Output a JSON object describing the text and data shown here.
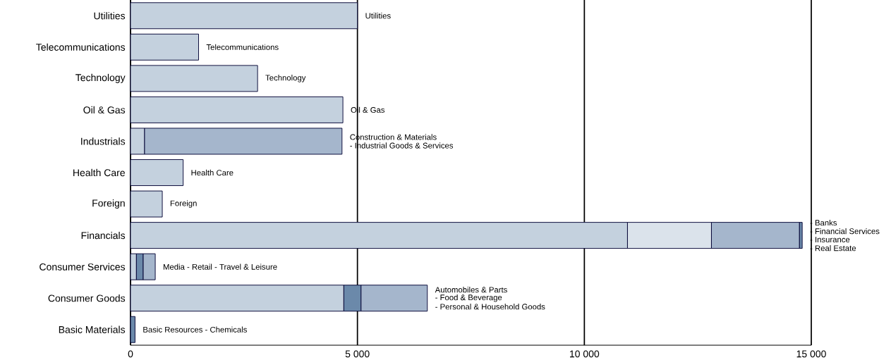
{
  "chart_data": {
    "type": "bar",
    "orientation": "horizontal",
    "stacked": true,
    "categories": [
      "Utilities",
      "Telecommunications",
      "Technology",
      "Oil & Gas",
      "Industrials",
      "Health Care",
      "Foreign",
      "Financials",
      "Consumer Services",
      "Consumer Goods",
      "Basic Materials"
    ],
    "series": [
      {
        "values": [
          5000,
          1500,
          2800,
          4680,
          310,
          1160,
          700,
          10950,
          130,
          4700,
          100
        ],
        "colors": [
          "#c4d1de",
          "#c4d1de",
          "#c4d1de",
          "#c4d1de",
          "#c4d1de",
          "#c4d1de",
          "#c4d1de",
          "#c4d1de",
          "#c4d1de",
          "#c4d1de",
          "#6b89aa"
        ]
      },
      {
        "values": [
          null,
          null,
          null,
          null,
          4350,
          null,
          null,
          1850,
          150,
          380,
          null
        ],
        "colors": [
          null,
          null,
          null,
          null,
          "#a5b6cc",
          null,
          null,
          "#dbe3eb",
          "#6b89aa",
          "#6b89aa",
          null
        ]
      },
      {
        "values": [
          null,
          null,
          null,
          null,
          null,
          null,
          null,
          1940,
          265,
          1460,
          null
        ],
        "colors": [
          null,
          null,
          null,
          null,
          null,
          null,
          null,
          "#a5b6cc",
          "#a5b6cc",
          "#a5b6cc",
          null
        ]
      },
      {
        "values": [
          null,
          null,
          null,
          null,
          null,
          null,
          null,
          60,
          null,
          null,
          null
        ],
        "colors": [
          null,
          null,
          null,
          null,
          null,
          null,
          null,
          "#6b89aa",
          null,
          null,
          null
        ]
      }
    ],
    "xlim": [
      0,
      15000
    ],
    "xticks": [
      0,
      {
        "value": 5000,
        "label": "5 000"
      },
      {
        "value": 10000,
        "label": "10 000"
      },
      {
        "value": 15000,
        "label": "15 000"
      }
    ],
    "grid": "x",
    "annotations": [
      {
        "text": "Utilities",
        "x": 5000,
        "y": "Utilities"
      },
      {
        "text": "Telecommunications",
        "x": 1500,
        "y": "Telecommunications"
      },
      {
        "text": "Technology",
        "x": 2800,
        "y": "Technology"
      },
      {
        "text": "Oil & Gas",
        "x": 4680,
        "y": "Oil & Gas"
      },
      {
        "text": "Construction & Materials",
        "x": 4660,
        "y": "Industrials"
      },
      {
        "text": "- Industrial Goods & Services",
        "x": 4660,
        "y": "Industrials"
      },
      {
        "text": "Health Care",
        "x": 1160,
        "y": "Health Care"
      },
      {
        "text": "Foreign",
        "x": 700,
        "y": "Foreign"
      },
      {
        "text": "- Banks",
        "x": 14800,
        "y": "Financials"
      },
      {
        "text": "- Financial Services",
        "x": 14800,
        "y": "Financials"
      },
      {
        "text": "- Insurance",
        "x": 14800,
        "y": "Financials"
      },
      {
        "text": "- Real Estate",
        "x": 14800,
        "y": "Financials"
      },
      {
        "text": "Media - Retail - Travel & Leisure",
        "x": 545,
        "y": "Consumer Services"
      },
      {
        "text": "Automobiles & Parts",
        "x": 6540,
        "y": "Consumer Goods"
      },
      {
        "text": "- Food & Beverage",
        "x": 6540,
        "y": "Consumer Goods"
      },
      {
        "text": "- Personal & Household Goods",
        "x": 6540,
        "y": "Consumer Goods"
      },
      {
        "text": "Basic Resources - Chemicals",
        "x": 100,
        "y": "Basic Materials"
      }
    ]
  }
}
